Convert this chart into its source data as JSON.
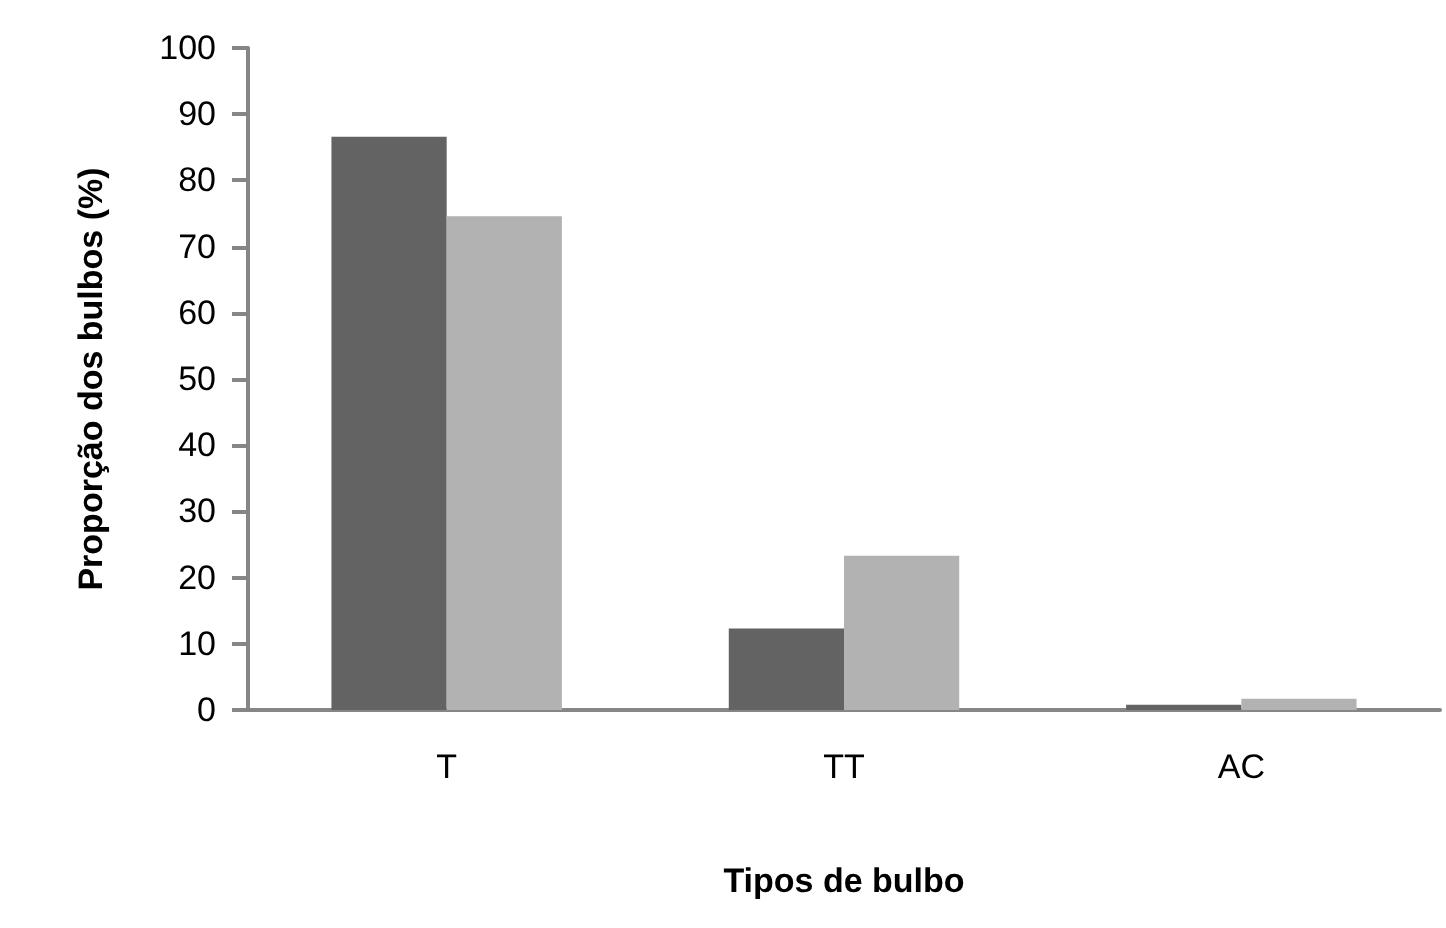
{
  "chart_data": {
    "type": "bar",
    "xlabel": "Tipos de bulbo",
    "ylabel": "Proporção dos bulbos (%)",
    "categories": [
      "T",
      "TT",
      "AC"
    ],
    "series": [
      {
        "color": "#636363",
        "values": [
          86.6,
          12.3,
          0.8
        ]
      },
      {
        "color": "#b2b2b2",
        "values": [
          74.6,
          23.3,
          1.7
        ]
      }
    ],
    "ylim": [
      0,
      100
    ],
    "yticks": [
      0,
      10,
      20,
      30,
      40,
      50,
      60,
      70,
      80,
      90,
      100
    ],
    "grid": false
  }
}
